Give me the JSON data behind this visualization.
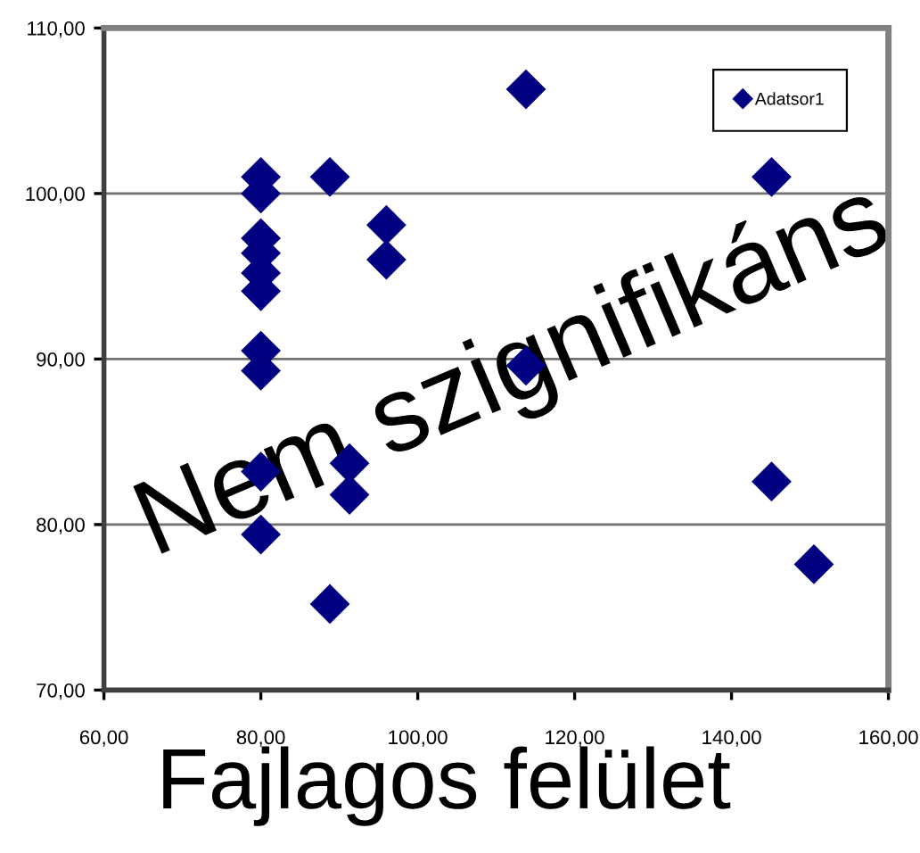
{
  "chart_data": {
    "type": "scatter",
    "xlabel": "Fajlagos felület",
    "annotations": [
      "Nem szignifikáns"
    ],
    "x": [
      80,
      80,
      80,
      80,
      80,
      80,
      80,
      80,
      80,
      80,
      88.8,
      88.8,
      91.3,
      91.3,
      96.0,
      96.0,
      113.8,
      113.8,
      145.1,
      145.1,
      150.5
    ],
    "series": [
      {
        "name": "Adatsor1",
        "color": "#000080",
        "values": [
          101.0,
          100.0,
          97.3,
          96.4,
          95.2,
          94.1,
          90.5,
          89.3,
          83.2,
          79.4,
          101.0,
          75.2,
          83.7,
          81.8,
          98.1,
          96.0,
          106.3,
          89.6,
          101.0,
          82.6,
          77.6
        ]
      }
    ],
    "xlim": [
      60,
      160
    ],
    "ylim": [
      70,
      110
    ],
    "xticks": [
      {
        "value": 60,
        "label": "60,00"
      },
      {
        "value": 80,
        "label": "80,00"
      },
      {
        "value": 100,
        "label": "100,00"
      },
      {
        "value": 120,
        "label": "120,00"
      },
      {
        "value": 140,
        "label": "140,00"
      },
      {
        "value": 160,
        "label": "160,00"
      }
    ],
    "yticks": [
      {
        "value": 70,
        "label": "70,00"
      },
      {
        "value": 80,
        "label": "80,00"
      },
      {
        "value": 90,
        "label": "90,00"
      },
      {
        "value": 100,
        "label": "100,00"
      },
      {
        "value": 110,
        "label": "110,00"
      }
    ],
    "grid": "y",
    "legend": "top right",
    "marker": "diamond"
  }
}
